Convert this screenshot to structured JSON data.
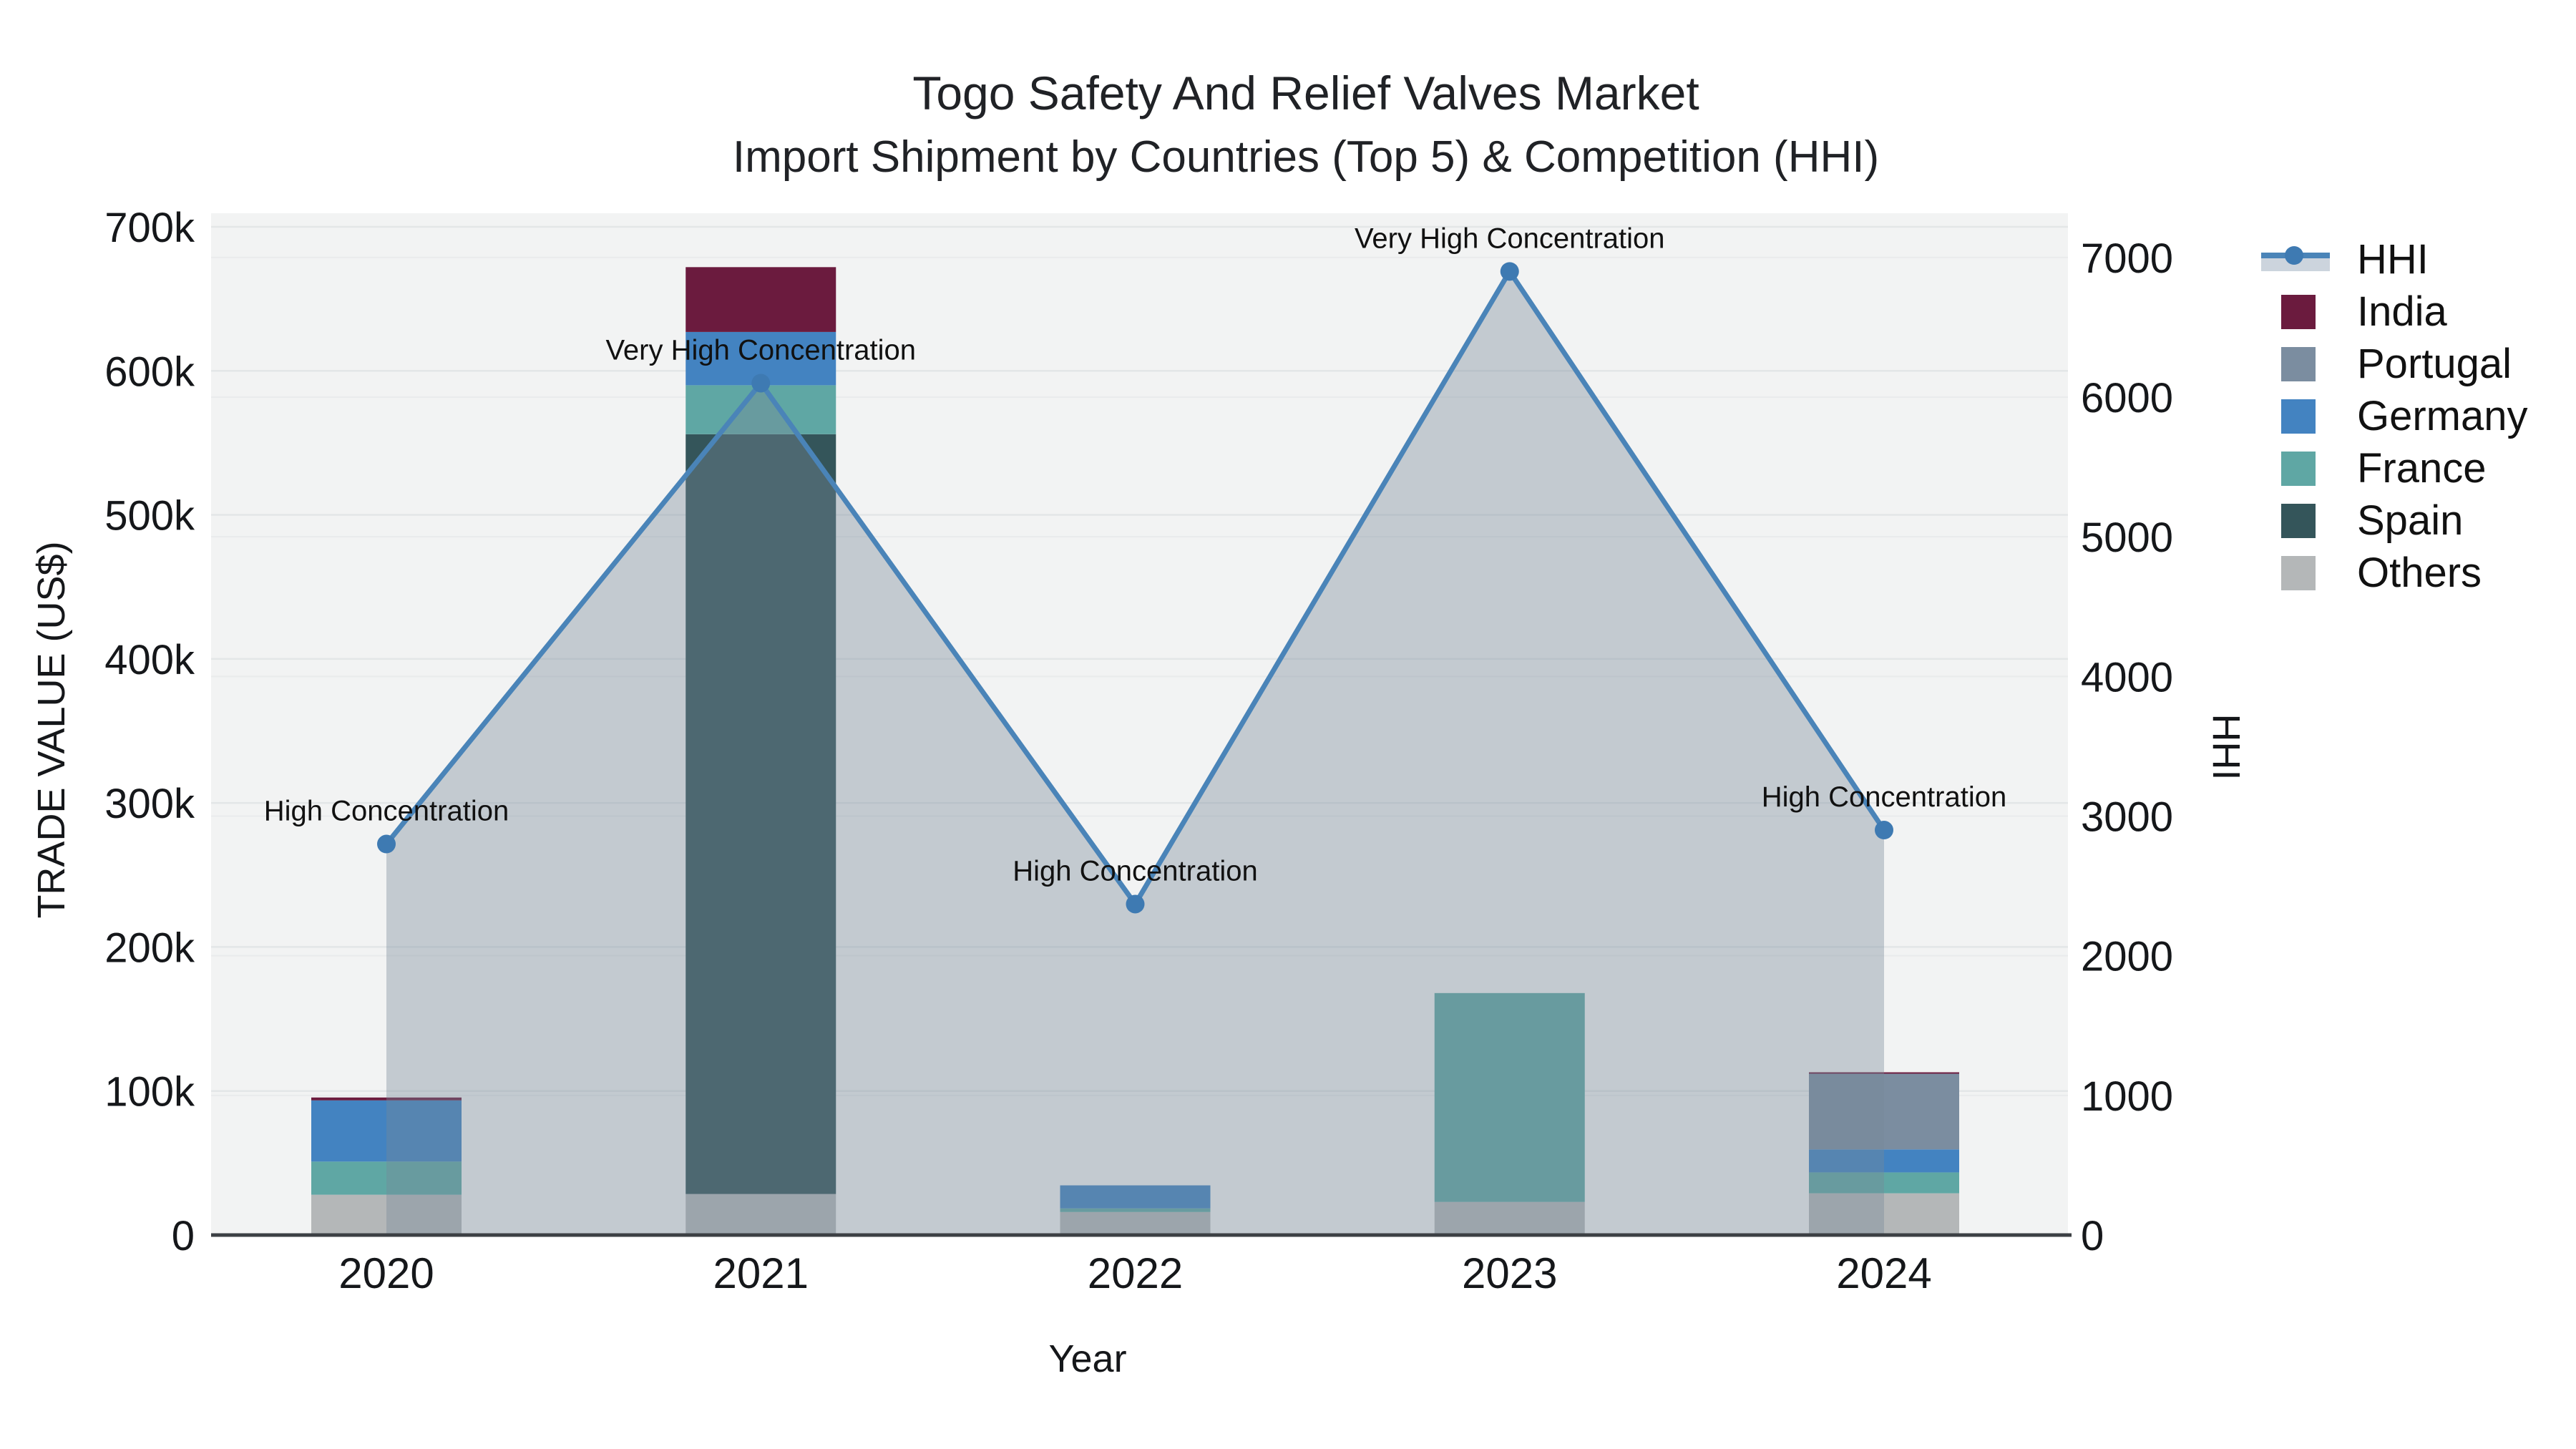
{
  "chart_data": {
    "type": "bar+line",
    "title": "Togo Safety And Relief Valves Market",
    "subtitle": "Import Shipment by Countries (Top 5) & Competition (HHI)",
    "xlabel": "Year",
    "ylabel_left": "TRADE VALUE (US$)",
    "ylabel_right": "HHI",
    "categories": [
      "2020",
      "2021",
      "2022",
      "2023",
      "2024"
    ],
    "bar_series": [
      {
        "name": "India",
        "color": "#6b1b3e",
        "values": [
          2000,
          45000,
          0,
          0,
          1000
        ]
      },
      {
        "name": "Portugal",
        "color": "#7b8da0",
        "values": [
          0,
          0,
          0,
          0,
          52500
        ]
      },
      {
        "name": "Germany",
        "color": "#4383c1",
        "values": [
          42500,
          37000,
          16000,
          0,
          16000
        ]
      },
      {
        "name": "France",
        "color": "#5fa7a4",
        "values": [
          23000,
          34000,
          2500,
          145000,
          14500
        ]
      },
      {
        "name": "Spain",
        "color": "#34555a",
        "values": [
          0,
          527500,
          0,
          0,
          0
        ]
      },
      {
        "name": "Others",
        "color": "#b4b7b8",
        "values": [
          28000,
          28500,
          16000,
          23000,
          29000
        ]
      }
    ],
    "stack_order_bottom_up": [
      "Others",
      "Spain",
      "France",
      "Germany",
      "Portugal",
      "India"
    ],
    "line_series": {
      "name": "HHI",
      "values": [
        2800,
        6100,
        2370,
        6900,
        2900
      ],
      "line_color": "#4a84b8",
      "marker_color": "#3e7ab2",
      "fill_color": "#778899",
      "fill_alpha": 0.38
    },
    "annotations": [
      {
        "category": "2020",
        "text": "High Concentration"
      },
      {
        "category": "2021",
        "text": "Very High Concentration"
      },
      {
        "category": "2022",
        "text": "High Concentration"
      },
      {
        "category": "2023",
        "text": "Very High Concentration"
      },
      {
        "category": "2024",
        "text": "High Concentration"
      }
    ],
    "y_left": {
      "min": 0,
      "max": 700000,
      "tick_values": [
        0,
        100000,
        200000,
        300000,
        400000,
        500000,
        600000,
        700000
      ],
      "tick_labels": [
        "0",
        "100k",
        "200k",
        "300k",
        "400k",
        "500k",
        "600k",
        "700k"
      ]
    },
    "y_right": {
      "min": 0,
      "max": 7000,
      "tick_values": [
        0,
        1000,
        2000,
        3000,
        4000,
        5000,
        6000,
        7000
      ],
      "tick_labels": [
        "0",
        "1000",
        "2000",
        "3000",
        "4000",
        "5000",
        "6000",
        "7000"
      ]
    },
    "legend_entries": [
      "HHI",
      "India",
      "Portugal",
      "Germany",
      "France",
      "Spain",
      "Others"
    ],
    "legend_position": "right",
    "grid": true,
    "colors": {
      "plot_bg": "#f2f3f3",
      "grid_left": "#e3e6e7",
      "grid_right": "#e9ebec",
      "axis_line": "#3c4044",
      "hhi_legend_band": "#ccd4dd",
      "text": "#111111"
    }
  }
}
